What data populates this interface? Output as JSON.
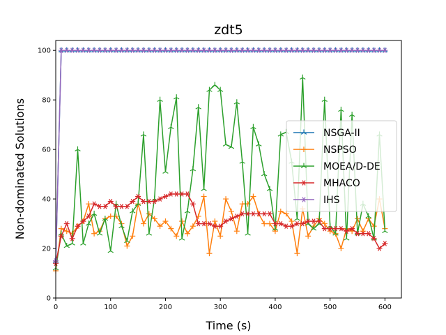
{
  "chart_data": {
    "type": "line",
    "title": "zdt5",
    "xlabel": "Time (s)",
    "ylabel": "Non-dominated Solutions",
    "xlim": [
      0,
      630
    ],
    "ylim": [
      0,
      104
    ],
    "xticks": [
      0,
      100,
      200,
      300,
      400,
      500,
      600
    ],
    "yticks": [
      0,
      20,
      40,
      60,
      80,
      100
    ],
    "legend_position": "center-right",
    "grid": false,
    "series": [
      {
        "name": "NSGA-II",
        "color": "#1f77b4",
        "marker": "tri",
        "x": [
          0,
          10,
          20,
          30,
          40,
          50,
          60,
          70,
          80,
          90,
          100,
          110,
          120,
          130,
          140,
          150,
          160,
          170,
          180,
          190,
          200,
          210,
          220,
          230,
          240,
          250,
          260,
          270,
          280,
          290,
          300,
          310,
          320,
          330,
          340,
          350,
          360,
          370,
          380,
          390,
          400,
          410,
          420,
          430,
          440,
          450,
          460,
          470,
          480,
          490,
          500,
          510,
          520,
          530,
          540,
          550,
          560,
          570,
          580,
          590,
          600
        ],
        "y": [
          15,
          100,
          100,
          100,
          100,
          100,
          100,
          100,
          100,
          100,
          100,
          100,
          100,
          100,
          100,
          100,
          100,
          100,
          100,
          100,
          100,
          100,
          100,
          100,
          100,
          100,
          100,
          100,
          100,
          100,
          100,
          100,
          100,
          100,
          100,
          100,
          100,
          100,
          100,
          100,
          100,
          100,
          100,
          100,
          100,
          100,
          100,
          100,
          100,
          100,
          100,
          100,
          100,
          100,
          100,
          100,
          100,
          100,
          100,
          100,
          100
        ]
      },
      {
        "name": "NSPSO",
        "color": "#ff7f0e",
        "marker": "plus",
        "x": [
          0,
          10,
          20,
          30,
          40,
          50,
          60,
          70,
          80,
          90,
          100,
          110,
          120,
          130,
          140,
          150,
          160,
          170,
          180,
          190,
          200,
          210,
          220,
          230,
          240,
          250,
          260,
          270,
          280,
          290,
          300,
          310,
          320,
          330,
          340,
          350,
          360,
          370,
          380,
          390,
          400,
          410,
          420,
          430,
          440,
          450,
          460,
          470,
          480,
          490,
          500,
          510,
          520,
          530,
          540,
          550,
          560,
          570,
          580,
          590,
          600
        ],
        "y": [
          11,
          28,
          27,
          26,
          29,
          31,
          38,
          26,
          27,
          32,
          33,
          33,
          30,
          21,
          25,
          38,
          30,
          34,
          32,
          29,
          31,
          28,
          25,
          31,
          26,
          29,
          33,
          41,
          18,
          31,
          25,
          40,
          35,
          27,
          38,
          38,
          41,
          34,
          30,
          30,
          27,
          35,
          34,
          31,
          18,
          36,
          25,
          29,
          32,
          30,
          27,
          26,
          20,
          28,
          27,
          32,
          27,
          32,
          29,
          40,
          28
        ]
      },
      {
        "name": "MOEA/D-DE",
        "color": "#2ca02c",
        "marker": "tri",
        "x": [
          0,
          10,
          20,
          30,
          40,
          50,
          60,
          70,
          80,
          90,
          100,
          110,
          120,
          130,
          140,
          150,
          160,
          170,
          180,
          190,
          200,
          210,
          220,
          230,
          240,
          250,
          260,
          270,
          280,
          290,
          300,
          310,
          320,
          330,
          340,
          350,
          360,
          370,
          380,
          390,
          400,
          410,
          420,
          430,
          440,
          450,
          460,
          470,
          480,
          490,
          500,
          510,
          520,
          530,
          540,
          550,
          560,
          570,
          580,
          590,
          600
        ],
        "y": [
          12,
          26,
          21,
          22,
          60,
          22,
          30,
          34,
          26,
          32,
          19,
          38,
          29,
          23,
          35,
          38,
          66,
          26,
          40,
          80,
          51,
          69,
          81,
          24,
          35,
          52,
          77,
          44,
          84,
          86,
          84,
          62,
          61,
          79,
          55,
          26,
          69,
          62,
          50,
          44,
          28,
          66,
          67,
          55,
          32,
          89,
          30,
          28,
          30,
          80,
          29,
          26,
          76,
          24,
          74,
          26,
          38,
          33,
          24,
          66,
          27
        ]
      },
      {
        "name": "MHACO",
        "color": "#d62728",
        "marker": "star",
        "x": [
          0,
          10,
          20,
          30,
          40,
          50,
          60,
          70,
          80,
          90,
          100,
          110,
          120,
          130,
          140,
          150,
          160,
          170,
          180,
          190,
          200,
          210,
          220,
          230,
          240,
          250,
          260,
          270,
          280,
          290,
          300,
          310,
          320,
          330,
          340,
          350,
          360,
          370,
          380,
          390,
          400,
          410,
          420,
          430,
          440,
          450,
          460,
          470,
          480,
          490,
          500,
          510,
          520,
          530,
          540,
          550,
          560,
          570,
          580,
          590,
          600
        ],
        "y": [
          14,
          25,
          30,
          24,
          29,
          31,
          33,
          38,
          37,
          37,
          39,
          37,
          37,
          37,
          39,
          41,
          39,
          39,
          39,
          40,
          41,
          42,
          42,
          42,
          42,
          38,
          30,
          30,
          30,
          29,
          29,
          31,
          32,
          33,
          34,
          34,
          34,
          34,
          34,
          34,
          30,
          30,
          29,
          29,
          30,
          30,
          31,
          31,
          31,
          28,
          28,
          28,
          28,
          27,
          28,
          26,
          26,
          26,
          24,
          20,
          22
        ]
      },
      {
        "name": "IHS",
        "color": "#9467bd",
        "marker": "star",
        "x": [
          0,
          10,
          20,
          30,
          40,
          50,
          60,
          70,
          80,
          90,
          100,
          110,
          120,
          130,
          140,
          150,
          160,
          170,
          180,
          190,
          200,
          210,
          220,
          230,
          240,
          250,
          260,
          270,
          280,
          290,
          300,
          310,
          320,
          330,
          340,
          350,
          360,
          370,
          380,
          390,
          400,
          410,
          420,
          430,
          440,
          450,
          460,
          470,
          480,
          490,
          500,
          510,
          520,
          530,
          540,
          550,
          560,
          570,
          580,
          590,
          600
        ],
        "y": [
          15,
          100,
          100,
          100,
          100,
          100,
          100,
          100,
          100,
          100,
          100,
          100,
          100,
          100,
          100,
          100,
          100,
          100,
          100,
          100,
          100,
          100,
          100,
          100,
          100,
          100,
          100,
          100,
          100,
          100,
          100,
          100,
          100,
          100,
          100,
          100,
          100,
          100,
          100,
          100,
          100,
          100,
          100,
          100,
          100,
          100,
          100,
          100,
          100,
          100,
          100,
          100,
          100,
          100,
          100,
          100,
          100,
          100,
          100,
          100,
          100
        ]
      }
    ]
  }
}
